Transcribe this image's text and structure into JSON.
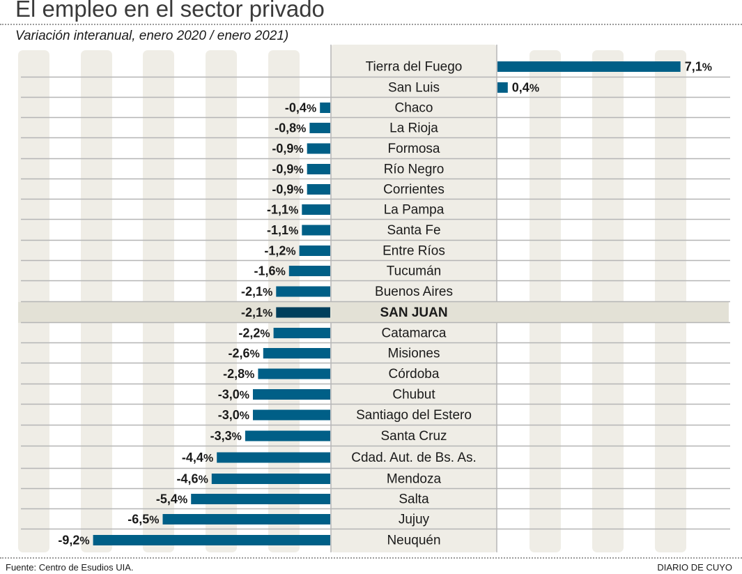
{
  "header": {
    "title": "El empleo en el sector privado",
    "subtitle": "Variación interanual, enero 2020 / enero 2021)"
  },
  "footer": {
    "source": "Fuente: Centro de Esudios UIA.",
    "brand": "DIARIO DE CUYO"
  },
  "colors": {
    "bar": "#005f87",
    "bar_highlight": "#003f5c",
    "stripe": "#efede6",
    "label_column": "#efede6",
    "highlight_row": "#e3e1d6",
    "gridline": "#b5b5b5"
  },
  "chart_data": {
    "type": "bar",
    "orientation": "horizontal",
    "title": "El empleo en el sector privado",
    "subtitle": "Variación interanual, enero 2020 / enero 2021)",
    "xlabel": "",
    "ylabel": "",
    "unit": "%",
    "highlight": "SAN JUAN",
    "grid": false,
    "categories": [
      "Tierra del Fuego",
      "San Luis",
      "Chaco",
      "La Rioja",
      "Formosa",
      "Río Negro",
      "Corrientes",
      "La Pampa",
      "Santa Fe",
      "Entre Ríos",
      "Tucumán",
      "Buenos Aires",
      "SAN JUAN",
      "Catamarca",
      "Misiones",
      "Córdoba",
      "Chubut",
      "Santiago del Estero",
      "Santa Cruz",
      "Cdad. Aut. de Bs. As.",
      "Mendoza",
      "Salta",
      "Jujuy",
      "Neuquén"
    ],
    "values": [
      7.1,
      0.4,
      -0.4,
      -0.8,
      -0.9,
      -0.9,
      -0.9,
      -1.1,
      -1.1,
      -1.2,
      -1.6,
      -2.1,
      -2.1,
      -2.2,
      -2.6,
      -2.8,
      -3.0,
      -3.0,
      -3.3,
      -4.4,
      -4.6,
      -5.4,
      -6.5,
      -9.2
    ],
    "data_labels": [
      "7,1%",
      "0,4%",
      "-0,4%",
      "-0,8%",
      "-0,9%",
      "-0,9%",
      "-0,9%",
      "-1,1%",
      "-1,1%",
      "-1,2%",
      "-1,6%",
      "-2,1%",
      "-2,1%",
      "-2,2%",
      "-2,6%",
      "-2,8%",
      "-3,0%",
      "-3,0%",
      "-3,3%",
      "-4,4%",
      "-4,6%",
      "-5,4%",
      "-6,5%",
      "-9,2%"
    ]
  }
}
